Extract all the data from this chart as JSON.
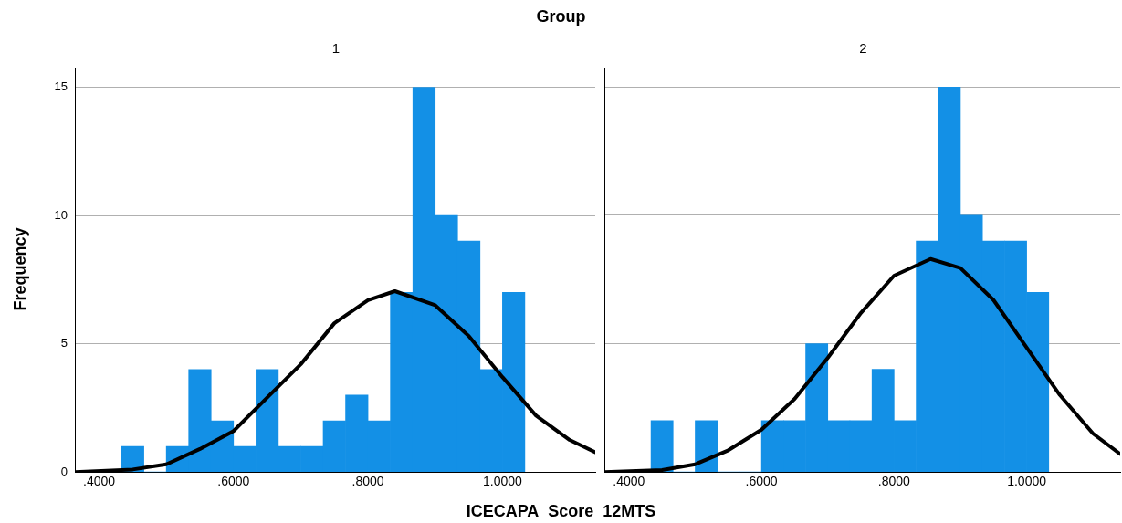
{
  "chart_data": [
    {
      "type": "histogram",
      "title": "Group",
      "subtitle": "1",
      "xlabel": "ICECAPA_Score_12MTS",
      "ylabel": "Frequency",
      "color": "#1390e6",
      "bins": [
        0.4333,
        0.4667,
        0.5,
        0.5333,
        0.5667,
        0.6,
        0.6333,
        0.6667,
        0.7,
        0.7333,
        0.7667,
        0.8,
        0.8333,
        0.8667,
        0.9,
        0.9333,
        0.9667,
        1.0,
        1.0333
      ],
      "values": [
        1,
        0,
        1,
        4,
        2,
        1,
        4,
        1,
        1,
        2,
        3,
        2,
        7,
        15,
        10,
        9,
        4,
        7
      ],
      "series": [
        {
          "type": "line",
          "color": "#000000",
          "marker": "none",
          "x": [
            0.364,
            0.45,
            0.5,
            0.55,
            0.6,
            0.65,
            0.7,
            0.75,
            0.8,
            0.84,
            0.9,
            0.95,
            1.0,
            1.05,
            1.1,
            1.138
          ],
          "values": [
            0.0,
            0.1,
            0.3,
            0.9,
            1.6,
            2.9,
            4.2,
            5.8,
            6.7,
            7.05,
            6.5,
            5.3,
            3.7,
            2.2,
            1.25,
            0.77
          ]
        }
      ],
      "xlim": [
        0.364,
        1.138
      ],
      "ylim": [
        0,
        15.7
      ],
      "xticks": [
        {
          "value": 0.4,
          "label": ".4000"
        },
        {
          "value": 0.6,
          "label": ".6000"
        },
        {
          "value": 0.8,
          "label": ".8000"
        },
        {
          "value": 1.0,
          "label": "1.0000"
        }
      ],
      "yticks": [
        0,
        5,
        10,
        15
      ],
      "grid": "y",
      "legend": false
    },
    {
      "type": "histogram",
      "subtitle": "2",
      "color": "#1390e6",
      "bins": [
        0.4333,
        0.4667,
        0.5,
        0.5333,
        0.5667,
        0.6,
        0.6333,
        0.6667,
        0.7,
        0.7333,
        0.7667,
        0.8,
        0.8333,
        0.8667,
        0.9,
        0.9333,
        0.9667,
        1.0,
        1.0333
      ],
      "values": [
        2,
        0,
        2,
        0,
        0,
        2,
        2,
        5,
        2,
        2,
        4,
        2,
        9,
        15,
        10,
        9,
        9,
        7
      ],
      "series": [
        {
          "type": "line",
          "color": "#000000",
          "marker": "none",
          "x": [
            0.363,
            0.45,
            0.5,
            0.55,
            0.6,
            0.65,
            0.7,
            0.75,
            0.8,
            0.855,
            0.9,
            0.95,
            1.0,
            1.05,
            1.1,
            1.141
          ],
          "values": [
            0.0,
            0.08,
            0.3,
            0.85,
            1.65,
            2.85,
            4.45,
            6.2,
            7.65,
            8.3,
            7.95,
            6.7,
            4.85,
            3.0,
            1.5,
            0.7
          ]
        }
      ],
      "xlim": [
        0.363,
        1.141
      ],
      "ylim": [
        0,
        15.7
      ],
      "xticks": [
        {
          "value": 0.4,
          "label": ".4000"
        },
        {
          "value": 0.6,
          "label": ".6000"
        },
        {
          "value": 0.8,
          "label": ".8000"
        },
        {
          "value": 1.0,
          "label": "1.0000"
        }
      ],
      "yticks": [
        0,
        5,
        10,
        15
      ],
      "grid": "y",
      "legend": false,
      "tick_labels": "x"
    }
  ]
}
